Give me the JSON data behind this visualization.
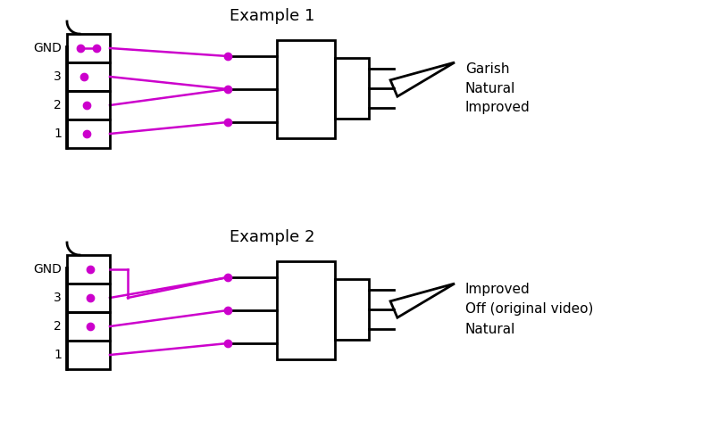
{
  "title1": "Example 1",
  "title2": "Example 2",
  "background": "#ffffff",
  "line_color": "#000000",
  "wire_color": "#cc00cc",
  "dot_color": "#cc00cc",
  "labels_ex1": [
    "Garish",
    "Natural",
    "Improved"
  ],
  "labels_ex2": [
    "Improved",
    "Off (original video)",
    "Natural"
  ],
  "pin_labels": [
    "GND",
    "3",
    "2",
    "1"
  ],
  "font_size_title": 13,
  "font_size_label": 11,
  "font_size_pin": 10,
  "lw_main": 2.0,
  "lw_wire": 1.8,
  "dot_size": 6
}
